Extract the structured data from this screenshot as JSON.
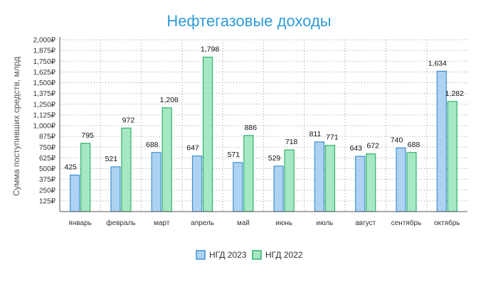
{
  "chart_data": {
    "type": "bar",
    "title": "Нефтегазовые доходы",
    "ylabel": "Сумма поступивших средств, млрд",
    "categories": [
      "январь",
      "февраль",
      "март",
      "апрель",
      "май",
      "июнь",
      "июль",
      "август",
      "сентябрь",
      "октябрь"
    ],
    "series": [
      {
        "name": "НГД 2023",
        "values": [
          425,
          521,
          688,
          647,
          571,
          529,
          811,
          643,
          740,
          1634
        ],
        "color": "#aed3f2",
        "stroke": "#3f8fd0"
      },
      {
        "name": "НГД 2022",
        "values": [
          795,
          972,
          1208,
          1798,
          886,
          718,
          771,
          672,
          688,
          1282
        ],
        "color": "#a6e8c3",
        "stroke": "#2fb36b"
      }
    ],
    "value_labels": [
      [
        "425",
        "521",
        "688",
        "647",
        "571",
        "529",
        "811",
        "643",
        "740",
        "1,634"
      ],
      [
        "795",
        "972",
        "1,208",
        "1,798",
        "886",
        "718",
        "771",
        "672",
        "688",
        "1,282"
      ]
    ],
    "yticks": [
      125,
      250,
      375,
      500,
      625,
      750,
      875,
      1000,
      1125,
      1250,
      1375,
      1500,
      1625,
      1750,
      1875,
      2000
    ],
    "ytick_labels": [
      "125₽",
      "250₽",
      "375₽",
      "500₽",
      "625₽",
      "750₽",
      "875₽",
      "1,000₽",
      "1,125₽",
      "1,250₽",
      "1,375₽",
      "1,500₽",
      "1,625₽",
      "1,750₽",
      "1,875₽",
      "2,000₽"
    ],
    "ylim": [
      0,
      2000
    ],
    "grid": true,
    "legend_position": "bottom-center"
  }
}
